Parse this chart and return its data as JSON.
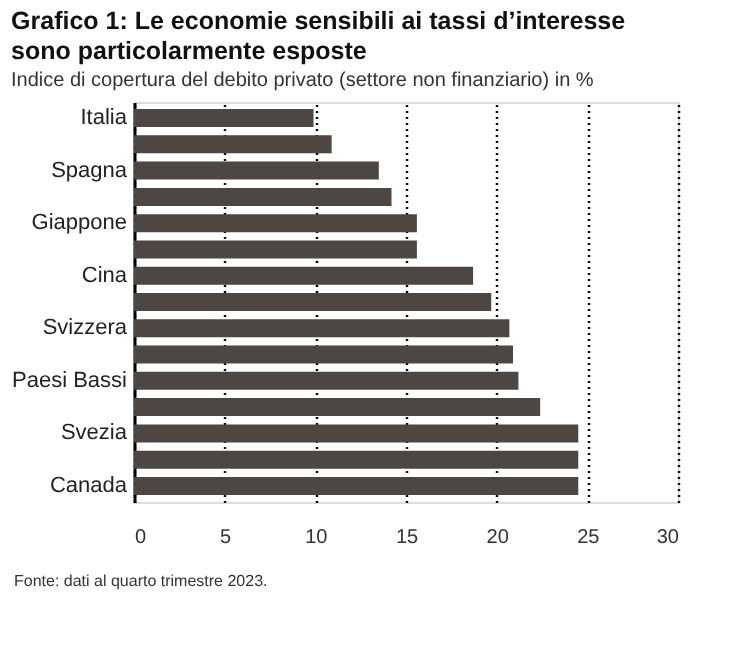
{
  "chart_data": {
    "type": "bar",
    "orientation": "horizontal",
    "title": "Grafico 1: Le economie sensibili ai tassi d’interesse sono particolarmente esposte",
    "subtitle": "Indice di copertura del debito privato (settore non finanziario) in %",
    "categories": [
      "Italia",
      null,
      "Spagna",
      null,
      "Giappone",
      null,
      "Cina",
      null,
      "Svizzera",
      null,
      "Paesi Bassi",
      null,
      "Svezia",
      null,
      "Canada"
    ],
    "values": [
      9.9,
      10.9,
      13.5,
      14.2,
      15.6,
      15.6,
      18.7,
      19.7,
      20.7,
      20.9,
      21.2,
      22.4,
      24.5,
      24.5,
      24.5
    ],
    "color": "#4d4744",
    "xlim": [
      0,
      30
    ],
    "xticks": [
      0,
      5,
      10,
      15,
      20,
      25,
      30
    ],
    "grid": "x",
    "annotations": [
      "Fonte: dati al quarto trimestre 2023."
    ]
  }
}
